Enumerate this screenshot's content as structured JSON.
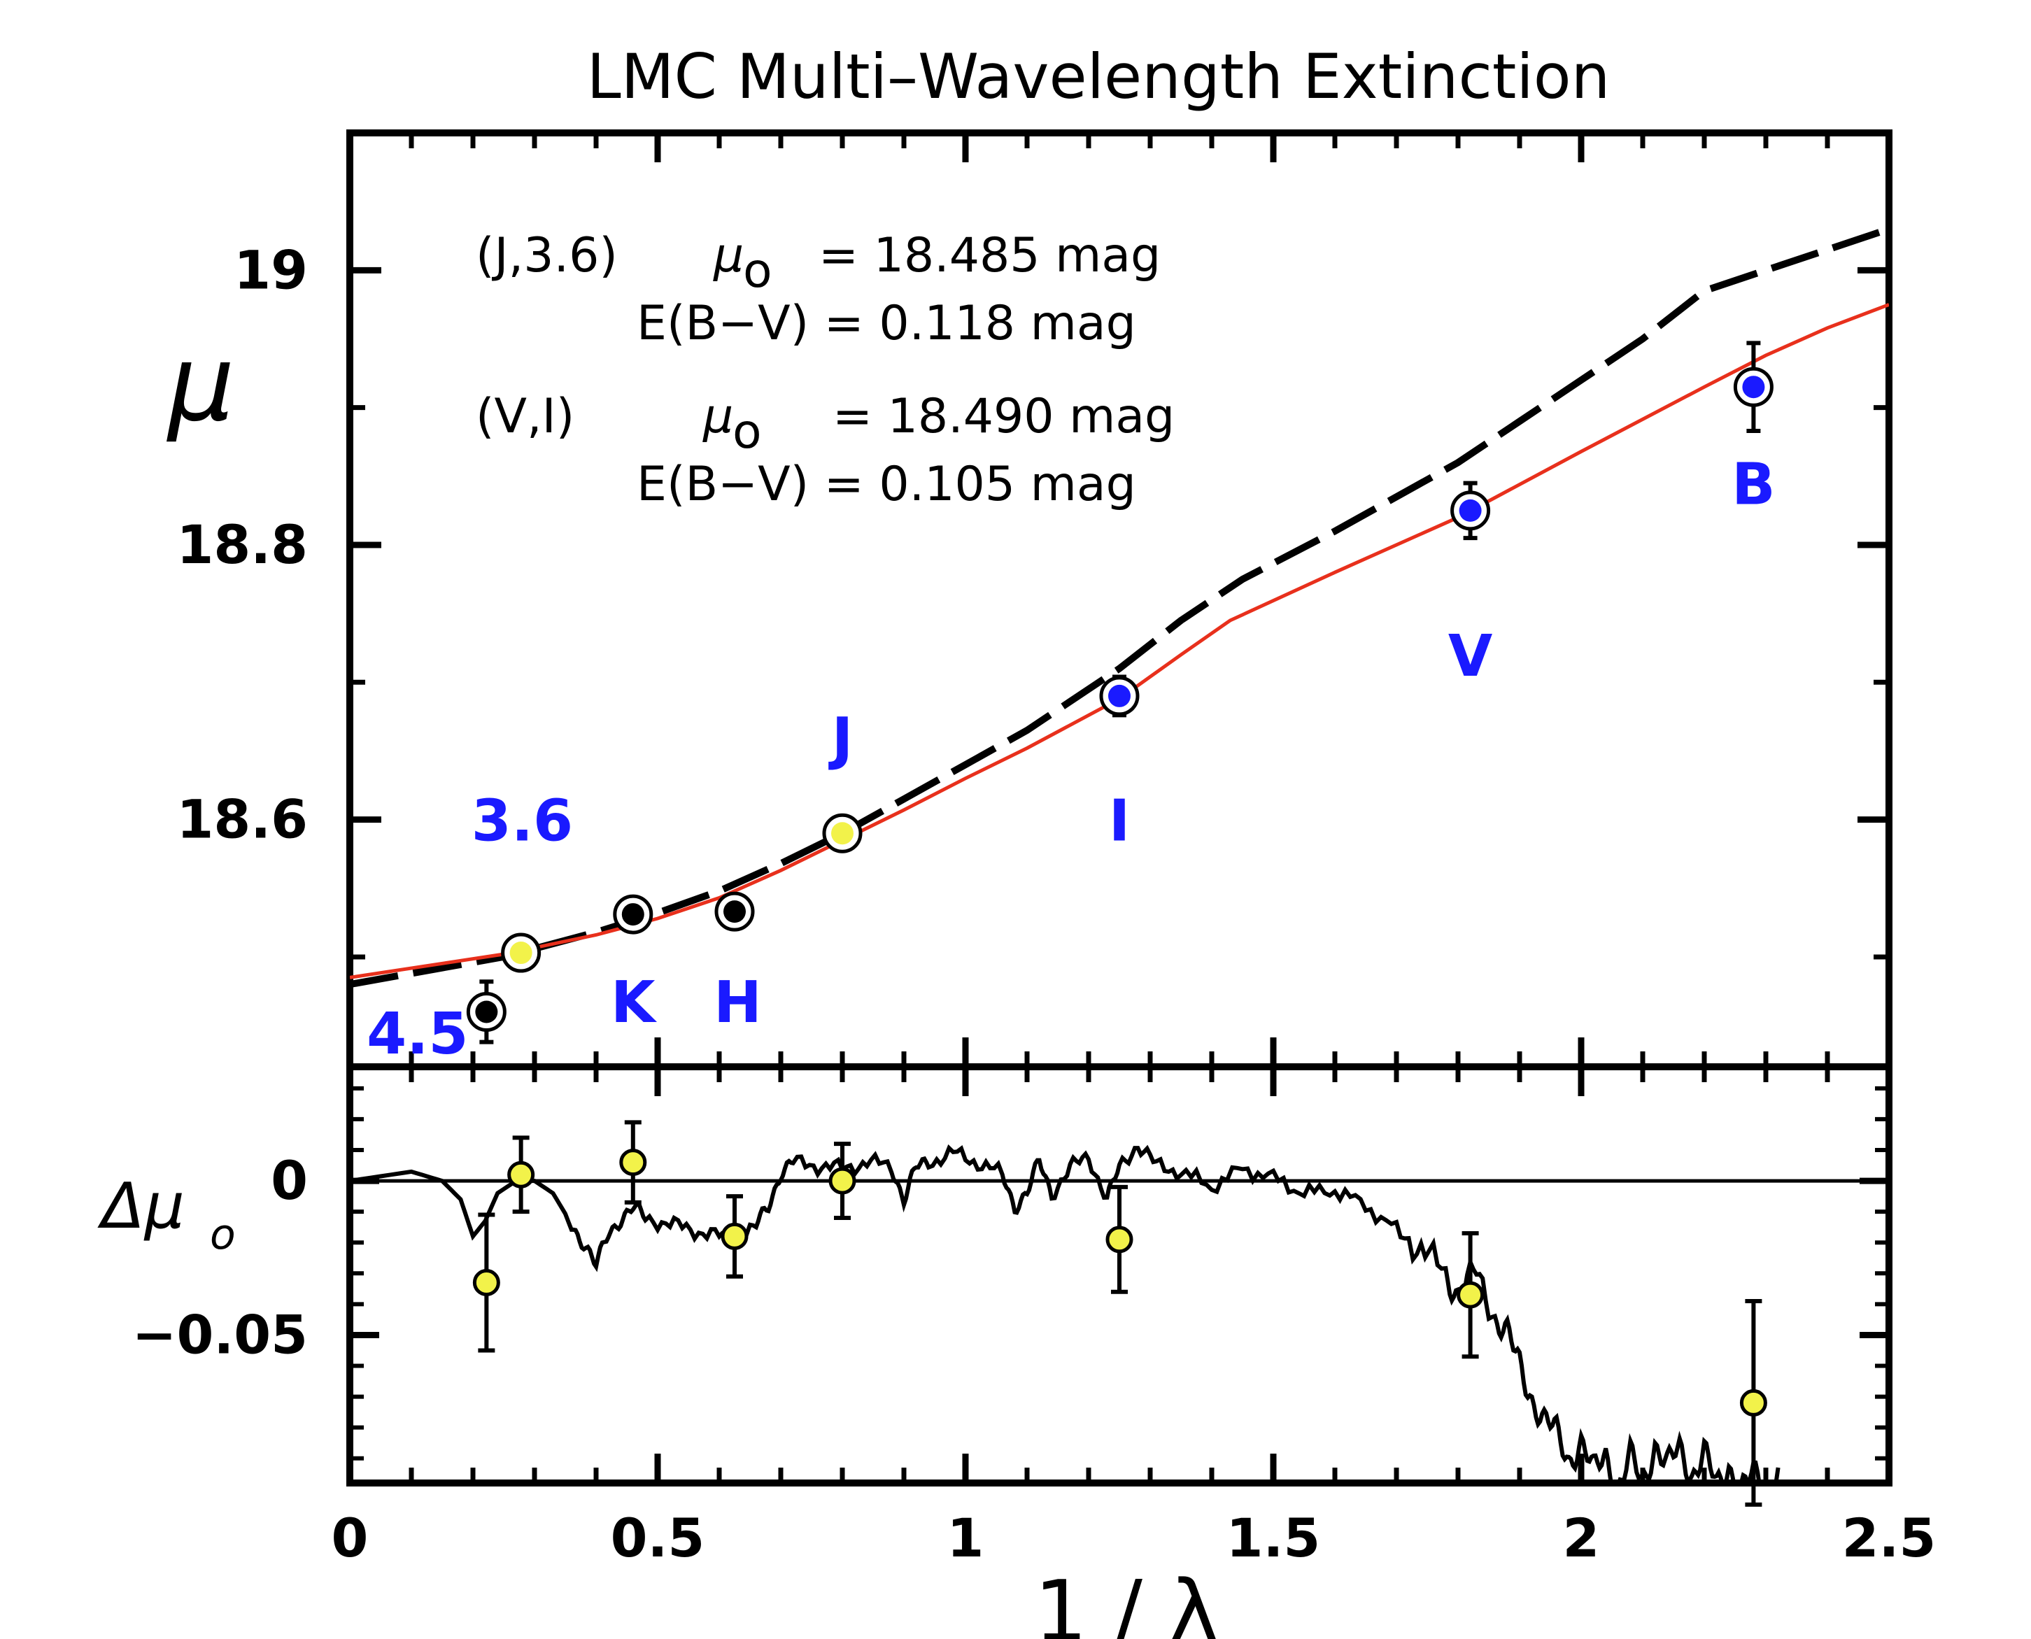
{
  "chart_data": [
    {
      "panel": "top",
      "type": "scatter",
      "title": "LMC Multi–Wavelength Extinction",
      "xlabel": "1 / λ",
      "ylabel": "μ",
      "xlim": [
        0,
        2.5
      ],
      "ylim": [
        18.42,
        19.1
      ],
      "yticks": [
        18.6,
        18.8,
        19
      ],
      "ytick_labels": [
        "18.6",
        "18.8",
        "19"
      ],
      "points": [
        {
          "band": "4.5",
          "x": 0.222,
          "y": 18.46,
          "err": 0.022,
          "fill": "#000000"
        },
        {
          "band": "3.6",
          "x": 0.278,
          "y": 18.503,
          "err": 0.01,
          "fill": "#f2f24a"
        },
        {
          "band": "K",
          "x": 0.46,
          "y": 18.531,
          "err": 0.01,
          "fill": "#000000"
        },
        {
          "band": "H",
          "x": 0.625,
          "y": 18.533,
          "err": 0.012,
          "fill": "#000000"
        },
        {
          "band": "J",
          "x": 0.8,
          "y": 18.59,
          "err": 0.01,
          "fill": "#f2f24a"
        },
        {
          "band": "I",
          "x": 1.25,
          "y": 18.69,
          "err": 0.014,
          "fill": "#1a1aff"
        },
        {
          "band": "V",
          "x": 1.82,
          "y": 18.825,
          "err": 0.02,
          "fill": "#1a1aff"
        },
        {
          "band": "B",
          "x": 2.28,
          "y": 18.915,
          "err": 0.032,
          "fill": "#1a1aff"
        }
      ],
      "series": [
        {
          "name": "(J,3.6) fit",
          "style": "dashed-black",
          "x": [
            0,
            0.25,
            0.4,
            0.5,
            0.6,
            0.7,
            0.8,
            0.9,
            1.0,
            1.1,
            1.25,
            1.35,
            1.45,
            1.6,
            1.8,
            1.9,
            2.0,
            2.1,
            2.2,
            2.3,
            2.4,
            2.5
          ],
          "y": [
            18.48,
            18.5,
            18.518,
            18.532,
            18.548,
            18.568,
            18.59,
            18.615,
            18.64,
            18.665,
            18.71,
            18.745,
            18.775,
            18.81,
            18.86,
            18.89,
            18.92,
            18.95,
            18.985,
            19.0,
            19.015,
            19.03
          ]
        },
        {
          "name": "(V,I) fit",
          "style": "solid-red",
          "x": [
            0,
            0.25,
            0.4,
            0.5,
            0.6,
            0.7,
            0.8,
            0.9,
            1.0,
            1.1,
            1.25,
            1.35,
            1.43,
            1.6,
            1.8,
            2.0,
            2.2,
            2.3,
            2.4,
            2.5
          ],
          "y": [
            18.485,
            18.502,
            18.516,
            18.528,
            18.543,
            18.563,
            18.585,
            18.607,
            18.63,
            18.652,
            18.688,
            18.72,
            18.745,
            18.78,
            18.82,
            18.868,
            18.915,
            18.938,
            18.958,
            18.975
          ]
        }
      ],
      "annotations": {
        "ji_label": "(J,3.6)",
        "ji_mu_sym": "μ",
        "ji_mu_sub": "o",
        "ji_mu_val": "= 18.485   mag",
        "ji_ebv": "E(B−V) = 0.118 mag",
        "vi_label": "(V,I)",
        "vi_mu_sym": "μ",
        "vi_mu_sub": "o",
        "vi_mu_val": "= 18.490   mag",
        "vi_ebv": "E(B−V) = 0.105 mag"
      }
    },
    {
      "panel": "bottom",
      "type": "scatter",
      "xlabel": "1 / λ",
      "ylabel": "Δμ",
      "ylabel_sub": "o",
      "xlim": [
        0,
        2.5
      ],
      "ylim": [
        -0.098,
        0.037
      ],
      "yticks": [
        0,
        -0.05
      ],
      "ytick_labels": [
        "0",
        "−0.05"
      ],
      "xticks": [
        0,
        0.5,
        1,
        1.5,
        2,
        2.5
      ],
      "xtick_labels": [
        "0",
        "0.5",
        "1",
        "1.5",
        "2",
        "2.5"
      ],
      "points": [
        {
          "x": 0.222,
          "y": -0.033,
          "err": 0.022
        },
        {
          "x": 0.278,
          "y": 0.002,
          "err": 0.012
        },
        {
          "x": 0.46,
          "y": 0.006,
          "err": 0.013
        },
        {
          "x": 0.625,
          "y": -0.018,
          "err": 0.013
        },
        {
          "x": 0.8,
          "y": 0.0,
          "err": 0.012
        },
        {
          "x": 1.25,
          "y": -0.019,
          "err": 0.017
        },
        {
          "x": 1.82,
          "y": -0.037,
          "err": 0.02
        },
        {
          "x": 2.28,
          "y": -0.072,
          "err": 0.033
        }
      ],
      "spectrum": {
        "x": [
          0,
          0.1,
          0.15,
          0.18,
          0.2,
          0.22,
          0.24,
          0.27,
          0.3,
          0.33,
          0.36,
          0.38,
          0.4,
          0.42,
          0.44,
          0.46,
          0.48,
          0.52,
          0.56,
          0.6,
          0.63,
          0.66,
          0.68,
          0.7,
          0.72,
          0.76,
          0.8,
          0.84,
          0.88,
          0.9,
          0.92,
          0.94,
          0.98,
          1.02,
          1.06,
          1.08,
          1.1,
          1.12,
          1.14,
          1.17,
          1.2,
          1.23,
          1.25,
          1.28,
          1.31,
          1.35,
          1.4,
          1.45,
          1.5,
          1.55,
          1.6,
          1.65,
          1.7,
          1.74,
          1.78,
          1.8,
          1.83,
          1.86,
          1.88,
          1.9,
          1.92,
          1.94,
          1.96,
          1.98,
          2.0,
          2.02,
          2.04,
          2.06,
          2.08,
          2.1,
          2.12,
          2.14,
          2.16,
          2.18,
          2.2,
          2.22,
          2.24,
          2.26,
          2.28,
          2.3,
          2.32
        ],
        "y": [
          0.0,
          0.003,
          0.0,
          -0.006,
          -0.018,
          -0.013,
          -0.004,
          0.0,
          0.0,
          -0.004,
          -0.014,
          -0.02,
          -0.028,
          -0.017,
          -0.012,
          -0.009,
          -0.012,
          -0.014,
          -0.016,
          -0.018,
          -0.019,
          -0.015,
          -0.008,
          0.003,
          0.006,
          0.005,
          0.004,
          0.006,
          0.005,
          -0.006,
          0.004,
          0.006,
          0.009,
          0.006,
          0.002,
          -0.008,
          -0.004,
          0.006,
          -0.004,
          0.004,
          0.008,
          -0.006,
          0.004,
          0.012,
          0.005,
          0.003,
          -0.002,
          0.004,
          0.001,
          -0.004,
          -0.003,
          -0.008,
          -0.016,
          -0.022,
          -0.03,
          -0.036,
          -0.03,
          -0.044,
          -0.05,
          -0.06,
          -0.07,
          -0.078,
          -0.082,
          -0.09,
          -0.085,
          -0.095,
          -0.088,
          -0.1,
          -0.09,
          -0.098,
          -0.085,
          -0.093,
          -0.087,
          -0.095,
          -0.088,
          -0.1,
          -0.092,
          -0.1,
          -0.096,
          -0.1,
          -0.093
        ]
      }
    }
  ]
}
